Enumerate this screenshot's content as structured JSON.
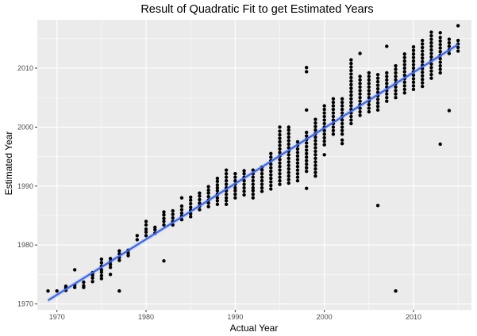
{
  "chart_data": {
    "type": "scatter",
    "title": "Result of Quadratic Fit to get Estimated Years",
    "xlabel": "Actual Year",
    "ylabel": "Estimated Year",
    "xlim": [
      1967.8,
      2016.5
    ],
    "ylim": [
      1969.0,
      2018.2
    ],
    "x_ticks": [
      "1970",
      "1980",
      "1990",
      "2000",
      "2010"
    ],
    "y_ticks": [
      "1970",
      "1980",
      "1990",
      "2000",
      "2010"
    ],
    "grid": true,
    "legend": "none",
    "colors": {
      "panel": "#ebebeb",
      "grid": "#ffffff",
      "points": "#000000",
      "fit_line": "#3366ff",
      "ribbon": "#c2c2c2"
    },
    "fit_line": {
      "x": [
        1969,
        2015
      ],
      "y": [
        1970.6,
        2014.0
      ]
    },
    "points": [
      [
        1969,
        1972.2
      ],
      [
        1970,
        1972.2
      ],
      [
        1971,
        1972.3
      ],
      [
        1971,
        1972.7
      ],
      [
        1971,
        1973.0
      ],
      [
        1972,
        1972.8
      ],
      [
        1972,
        1973.2
      ],
      [
        1972,
        1975.8
      ],
      [
        1973,
        1972.8
      ],
      [
        1973,
        1973.1
      ],
      [
        1973,
        1973.7
      ],
      [
        1974,
        1973.8
      ],
      [
        1974,
        1974.4
      ],
      [
        1974,
        1974.9
      ],
      [
        1974,
        1975.3
      ],
      [
        1975,
        1974.3
      ],
      [
        1975,
        1974.8
      ],
      [
        1975,
        1975.4
      ],
      [
        1975,
        1975.8
      ],
      [
        1975,
        1976.4
      ],
      [
        1975,
        1977.0
      ],
      [
        1975,
        1977.6
      ],
      [
        1976,
        1975.0
      ],
      [
        1976,
        1976.2
      ],
      [
        1976,
        1976.7
      ],
      [
        1976,
        1977.2
      ],
      [
        1976,
        1977.7
      ],
      [
        1977,
        1972.2
      ],
      [
        1977,
        1977.4
      ],
      [
        1977,
        1977.9
      ],
      [
        1977,
        1978.5
      ],
      [
        1977,
        1979.0
      ],
      [
        1978,
        1978.2
      ],
      [
        1978,
        1978.6
      ],
      [
        1978,
        1979.1
      ],
      [
        1979,
        1980.9
      ],
      [
        1979,
        1981.6
      ],
      [
        1980,
        1981.6
      ],
      [
        1980,
        1982.2
      ],
      [
        1980,
        1982.7
      ],
      [
        1980,
        1983.4
      ],
      [
        1980,
        1984.0
      ],
      [
        1981,
        1982.0
      ],
      [
        1981,
        1982.6
      ],
      [
        1981,
        1983.0
      ],
      [
        1982,
        1977.3
      ],
      [
        1982,
        1983.4
      ],
      [
        1982,
        1984.0
      ],
      [
        1982,
        1984.5
      ],
      [
        1982,
        1985.1
      ],
      [
        1982,
        1985.6
      ],
      [
        1983,
        1983.4
      ],
      [
        1983,
        1984.0
      ],
      [
        1983,
        1984.6
      ],
      [
        1983,
        1985.2
      ],
      [
        1983,
        1985.8
      ],
      [
        1984,
        1984.3
      ],
      [
        1984,
        1984.9
      ],
      [
        1984,
        1985.4
      ],
      [
        1984,
        1986.0
      ],
      [
        1984,
        1986.6
      ],
      [
        1984,
        1988.0
      ],
      [
        1985,
        1984.8
      ],
      [
        1985,
        1985.3
      ],
      [
        1985,
        1985.9
      ],
      [
        1985,
        1986.4
      ],
      [
        1985,
        1987.0
      ],
      [
        1985,
        1987.6
      ],
      [
        1985,
        1988.1
      ],
      [
        1986,
        1986.0
      ],
      [
        1986,
        1986.6
      ],
      [
        1986,
        1987.1
      ],
      [
        1986,
        1987.7
      ],
      [
        1986,
        1988.3
      ],
      [
        1986,
        1988.8
      ],
      [
        1987,
        1986.5
      ],
      [
        1987,
        1987.1
      ],
      [
        1987,
        1987.6
      ],
      [
        1987,
        1988.2
      ],
      [
        1987,
        1988.8
      ],
      [
        1987,
        1989.3
      ],
      [
        1987,
        1989.9
      ],
      [
        1988,
        1986.9
      ],
      [
        1988,
        1987.5
      ],
      [
        1988,
        1988.0
      ],
      [
        1988,
        1988.6
      ],
      [
        1988,
        1989.2
      ],
      [
        1988,
        1989.7
      ],
      [
        1988,
        1990.2
      ],
      [
        1988,
        1990.8
      ],
      [
        1988,
        1991.3
      ],
      [
        1989,
        1986.9
      ],
      [
        1989,
        1987.5
      ],
      [
        1989,
        1988.0
      ],
      [
        1989,
        1988.6
      ],
      [
        1989,
        1989.2
      ],
      [
        1989,
        1989.7
      ],
      [
        1989,
        1990.3
      ],
      [
        1989,
        1990.9
      ],
      [
        1989,
        1991.5
      ],
      [
        1989,
        1992.1
      ],
      [
        1989,
        1992.7
      ],
      [
        1990,
        1988.0
      ],
      [
        1990,
        1988.6
      ],
      [
        1990,
        1989.2
      ],
      [
        1990,
        1989.7
      ],
      [
        1990,
        1990.3
      ],
      [
        1990,
        1990.9
      ],
      [
        1990,
        1991.5
      ],
      [
        1990,
        1992.1
      ],
      [
        1991,
        1988.5
      ],
      [
        1991,
        1989.1
      ],
      [
        1991,
        1989.7
      ],
      [
        1991,
        1990.3
      ],
      [
        1991,
        1990.9
      ],
      [
        1991,
        1991.5
      ],
      [
        1991,
        1992.1
      ],
      [
        1991,
        1992.6
      ],
      [
        1992,
        1988.0
      ],
      [
        1992,
        1988.6
      ],
      [
        1992,
        1989.2
      ],
      [
        1992,
        1989.7
      ],
      [
        1992,
        1990.3
      ],
      [
        1992,
        1990.9
      ],
      [
        1992,
        1991.5
      ],
      [
        1992,
        1992.1
      ],
      [
        1992,
        1992.7
      ],
      [
        1993,
        1989.1
      ],
      [
        1993,
        1989.7
      ],
      [
        1993,
        1990.3
      ],
      [
        1993,
        1990.9
      ],
      [
        1993,
        1991.5
      ],
      [
        1993,
        1992.1
      ],
      [
        1993,
        1992.7
      ],
      [
        1993,
        1993.2
      ],
      [
        1994,
        1989.5
      ],
      [
        1994,
        1990.1
      ],
      [
        1994,
        1990.7
      ],
      [
        1994,
        1991.3
      ],
      [
        1994,
        1991.9
      ],
      [
        1994,
        1992.5
      ],
      [
        1994,
        1993.1
      ],
      [
        1994,
        1993.7
      ],
      [
        1994,
        1994.3
      ],
      [
        1994,
        1994.9
      ],
      [
        1994,
        1995.5
      ],
      [
        1995,
        1990.3
      ],
      [
        1995,
        1990.9
      ],
      [
        1995,
        1991.5
      ],
      [
        1995,
        1992.1
      ],
      [
        1995,
        1992.7
      ],
      [
        1995,
        1993.3
      ],
      [
        1995,
        1993.9
      ],
      [
        1995,
        1994.5
      ],
      [
        1995,
        1995.1
      ],
      [
        1995,
        1995.7
      ],
      [
        1995,
        1996.3
      ],
      [
        1995,
        1996.9
      ],
      [
        1995,
        1997.5
      ],
      [
        1995,
        1998.1
      ],
      [
        1995,
        1998.7
      ],
      [
        1995,
        1999.3
      ],
      [
        1995,
        2000.0
      ],
      [
        1996,
        1990.5
      ],
      [
        1996,
        1991.1
      ],
      [
        1996,
        1991.7
      ],
      [
        1996,
        1992.3
      ],
      [
        1996,
        1992.9
      ],
      [
        1996,
        1993.5
      ],
      [
        1996,
        1994.1
      ],
      [
        1996,
        1994.7
      ],
      [
        1996,
        1995.3
      ],
      [
        1996,
        1995.9
      ],
      [
        1996,
        1996.5
      ],
      [
        1996,
        1997.1
      ],
      [
        1996,
        1997.7
      ],
      [
        1996,
        1998.3
      ],
      [
        1996,
        1998.9
      ],
      [
        1996,
        1999.5
      ],
      [
        1996,
        2000.0
      ],
      [
        1997,
        1990.9
      ],
      [
        1997,
        1991.5
      ],
      [
        1997,
        1992.1
      ],
      [
        1997,
        1992.7
      ],
      [
        1997,
        1993.3
      ],
      [
        1997,
        1993.9
      ],
      [
        1997,
        1994.5
      ],
      [
        1997,
        1995.1
      ],
      [
        1997,
        1995.7
      ],
      [
        1997,
        1996.3
      ],
      [
        1997,
        1996.9
      ],
      [
        1997,
        1997.5
      ],
      [
        1998,
        1989.6
      ],
      [
        1998,
        1992.5
      ],
      [
        1998,
        1993.1
      ],
      [
        1998,
        1993.7
      ],
      [
        1998,
        1994.3
      ],
      [
        1998,
        1994.9
      ],
      [
        1998,
        1995.5
      ],
      [
        1998,
        1996.1
      ],
      [
        1998,
        1996.7
      ],
      [
        1998,
        1997.3
      ],
      [
        1998,
        1997.9
      ],
      [
        1998,
        1998.5
      ],
      [
        1998,
        1999.1
      ],
      [
        1998,
        2002.9
      ],
      [
        1998,
        2009.4
      ],
      [
        1998,
        2010.1
      ],
      [
        1999,
        1991.7
      ],
      [
        1999,
        1992.3
      ],
      [
        1999,
        1992.9
      ],
      [
        1999,
        1993.5
      ],
      [
        1999,
        1994.1
      ],
      [
        1999,
        1994.7
      ],
      [
        1999,
        1995.3
      ],
      [
        1999,
        1995.9
      ],
      [
        1999,
        1996.5
      ],
      [
        1999,
        1997.1
      ],
      [
        1999,
        1997.7
      ],
      [
        1999,
        1998.3
      ],
      [
        1999,
        1998.9
      ],
      [
        1999,
        1999.5
      ],
      [
        1999,
        2000.1
      ],
      [
        1999,
        2000.7
      ],
      [
        1999,
        2001.3
      ],
      [
        2000,
        1995.3
      ],
      [
        2000,
        1997.0
      ],
      [
        2000,
        1997.6
      ],
      [
        2000,
        1998.2
      ],
      [
        2000,
        1998.8
      ],
      [
        2000,
        1999.4
      ],
      [
        2000,
        2000.0
      ],
      [
        2000,
        2000.6
      ],
      [
        2000,
        2001.2
      ],
      [
        2000,
        2001.8
      ],
      [
        2000,
        2002.4
      ],
      [
        2000,
        2003.0
      ],
      [
        2000,
        2003.6
      ],
      [
        2001,
        1998.8
      ],
      [
        2001,
        1999.4
      ],
      [
        2001,
        2000.0
      ],
      [
        2001,
        2000.6
      ],
      [
        2001,
        2001.2
      ],
      [
        2001,
        2001.8
      ],
      [
        2001,
        2002.4
      ],
      [
        2001,
        2003.0
      ],
      [
        2001,
        2003.6
      ],
      [
        2001,
        2004.2
      ],
      [
        2001,
        2004.8
      ],
      [
        2002,
        1997.2
      ],
      [
        2002,
        1997.8
      ],
      [
        2002,
        1998.8
      ],
      [
        2002,
        1999.4
      ],
      [
        2002,
        2000.0
      ],
      [
        2002,
        2000.6
      ],
      [
        2002,
        2001.2
      ],
      [
        2002,
        2001.8
      ],
      [
        2002,
        2002.4
      ],
      [
        2002,
        2003.0
      ],
      [
        2002,
        2003.6
      ],
      [
        2002,
        2004.2
      ],
      [
        2002,
        2004.8
      ],
      [
        2003,
        2000.6
      ],
      [
        2003,
        2001.2
      ],
      [
        2003,
        2001.8
      ],
      [
        2003,
        2002.4
      ],
      [
        2003,
        2003.0
      ],
      [
        2003,
        2003.6
      ],
      [
        2003,
        2004.2
      ],
      [
        2003,
        2004.8
      ],
      [
        2003,
        2005.4
      ],
      [
        2003,
        2006.0
      ],
      [
        2003,
        2006.6
      ],
      [
        2003,
        2007.2
      ],
      [
        2003,
        2007.8
      ],
      [
        2003,
        2008.4
      ],
      [
        2003,
        2009.0
      ],
      [
        2003,
        2009.6
      ],
      [
        2003,
        2010.2
      ],
      [
        2003,
        2010.8
      ],
      [
        2003,
        2011.4
      ],
      [
        2004,
        2002.0
      ],
      [
        2004,
        2002.6
      ],
      [
        2004,
        2003.2
      ],
      [
        2004,
        2003.8
      ],
      [
        2004,
        2004.4
      ],
      [
        2004,
        2005.0
      ],
      [
        2004,
        2005.6
      ],
      [
        2004,
        2006.2
      ],
      [
        2004,
        2006.8
      ],
      [
        2004,
        2007.4
      ],
      [
        2004,
        2008.0
      ],
      [
        2004,
        2008.6
      ],
      [
        2004,
        2012.5
      ],
      [
        2005,
        2002.6
      ],
      [
        2005,
        2003.2
      ],
      [
        2005,
        2003.8
      ],
      [
        2005,
        2004.4
      ],
      [
        2005,
        2005.0
      ],
      [
        2005,
        2005.6
      ],
      [
        2005,
        2006.2
      ],
      [
        2005,
        2006.8
      ],
      [
        2005,
        2007.4
      ],
      [
        2005,
        2008.0
      ],
      [
        2005,
        2008.6
      ],
      [
        2005,
        2009.2
      ],
      [
        2006,
        1986.7
      ],
      [
        2006,
        2002.9
      ],
      [
        2006,
        2003.5
      ],
      [
        2006,
        2004.1
      ],
      [
        2006,
        2004.7
      ],
      [
        2006,
        2005.3
      ],
      [
        2006,
        2005.9
      ],
      [
        2006,
        2006.5
      ],
      [
        2006,
        2007.1
      ],
      [
        2006,
        2007.7
      ],
      [
        2006,
        2008.3
      ],
      [
        2006,
        2008.9
      ],
      [
        2007,
        2004.4
      ],
      [
        2007,
        2005.0
      ],
      [
        2007,
        2005.6
      ],
      [
        2007,
        2006.2
      ],
      [
        2007,
        2006.8
      ],
      [
        2007,
        2007.4
      ],
      [
        2007,
        2008.0
      ],
      [
        2007,
        2008.6
      ],
      [
        2007,
        2009.2
      ],
      [
        2007,
        2013.7
      ],
      [
        2008,
        1972.2
      ],
      [
        2008,
        2005.0
      ],
      [
        2008,
        2005.6
      ],
      [
        2008,
        2006.2
      ],
      [
        2008,
        2006.8
      ],
      [
        2008,
        2007.4
      ],
      [
        2008,
        2008.0
      ],
      [
        2008,
        2008.6
      ],
      [
        2008,
        2009.2
      ],
      [
        2008,
        2009.8
      ],
      [
        2008,
        2010.4
      ],
      [
        2009,
        2005.8
      ],
      [
        2009,
        2006.4
      ],
      [
        2009,
        2007.0
      ],
      [
        2009,
        2007.6
      ],
      [
        2009,
        2008.2
      ],
      [
        2009,
        2008.8
      ],
      [
        2009,
        2009.4
      ],
      [
        2009,
        2010.0
      ],
      [
        2009,
        2010.6
      ],
      [
        2009,
        2011.2
      ],
      [
        2009,
        2011.8
      ],
      [
        2009,
        2012.4
      ],
      [
        2010,
        2006.4
      ],
      [
        2010,
        2007.0
      ],
      [
        2010,
        2007.6
      ],
      [
        2010,
        2008.2
      ],
      [
        2010,
        2008.8
      ],
      [
        2010,
        2009.4
      ],
      [
        2010,
        2010.0
      ],
      [
        2010,
        2010.6
      ],
      [
        2010,
        2011.2
      ],
      [
        2010,
        2011.8
      ],
      [
        2010,
        2012.4
      ],
      [
        2010,
        2013.0
      ],
      [
        2010,
        2013.6
      ],
      [
        2011,
        2006.9
      ],
      [
        2011,
        2007.5
      ],
      [
        2011,
        2008.1
      ],
      [
        2011,
        2008.7
      ],
      [
        2011,
        2009.3
      ],
      [
        2011,
        2009.9
      ],
      [
        2011,
        2010.5
      ],
      [
        2011,
        2011.1
      ],
      [
        2011,
        2011.7
      ],
      [
        2011,
        2012.3
      ],
      [
        2011,
        2012.9
      ],
      [
        2011,
        2013.5
      ],
      [
        2011,
        2014.1
      ],
      [
        2011,
        2014.7
      ],
      [
        2012,
        2008.3
      ],
      [
        2012,
        2008.9
      ],
      [
        2012,
        2009.5
      ],
      [
        2012,
        2010.1
      ],
      [
        2012,
        2010.7
      ],
      [
        2012,
        2011.3
      ],
      [
        2012,
        2011.9
      ],
      [
        2012,
        2012.5
      ],
      [
        2012,
        2013.1
      ],
      [
        2012,
        2013.7
      ],
      [
        2012,
        2014.3
      ],
      [
        2012,
        2014.9
      ],
      [
        2012,
        2015.5
      ],
      [
        2012,
        2016.1
      ],
      [
        2013,
        1997.1
      ],
      [
        2013,
        2009.2
      ],
      [
        2013,
        2009.8
      ],
      [
        2013,
        2010.4
      ],
      [
        2013,
        2011.0
      ],
      [
        2013,
        2011.6
      ],
      [
        2013,
        2012.2
      ],
      [
        2013,
        2012.8
      ],
      [
        2013,
        2013.4
      ],
      [
        2013,
        2014.0
      ],
      [
        2013,
        2014.6
      ],
      [
        2013,
        2015.2
      ],
      [
        2013,
        2016.0
      ],
      [
        2014,
        2002.8
      ],
      [
        2014,
        2012.5
      ],
      [
        2014,
        2013.1
      ],
      [
        2014,
        2013.7
      ],
      [
        2014,
        2014.3
      ],
      [
        2014,
        2014.9
      ],
      [
        2015,
        2012.9
      ],
      [
        2015,
        2013.5
      ],
      [
        2015,
        2014.1
      ],
      [
        2015,
        2014.7
      ],
      [
        2015,
        2017.2
      ]
    ]
  }
}
